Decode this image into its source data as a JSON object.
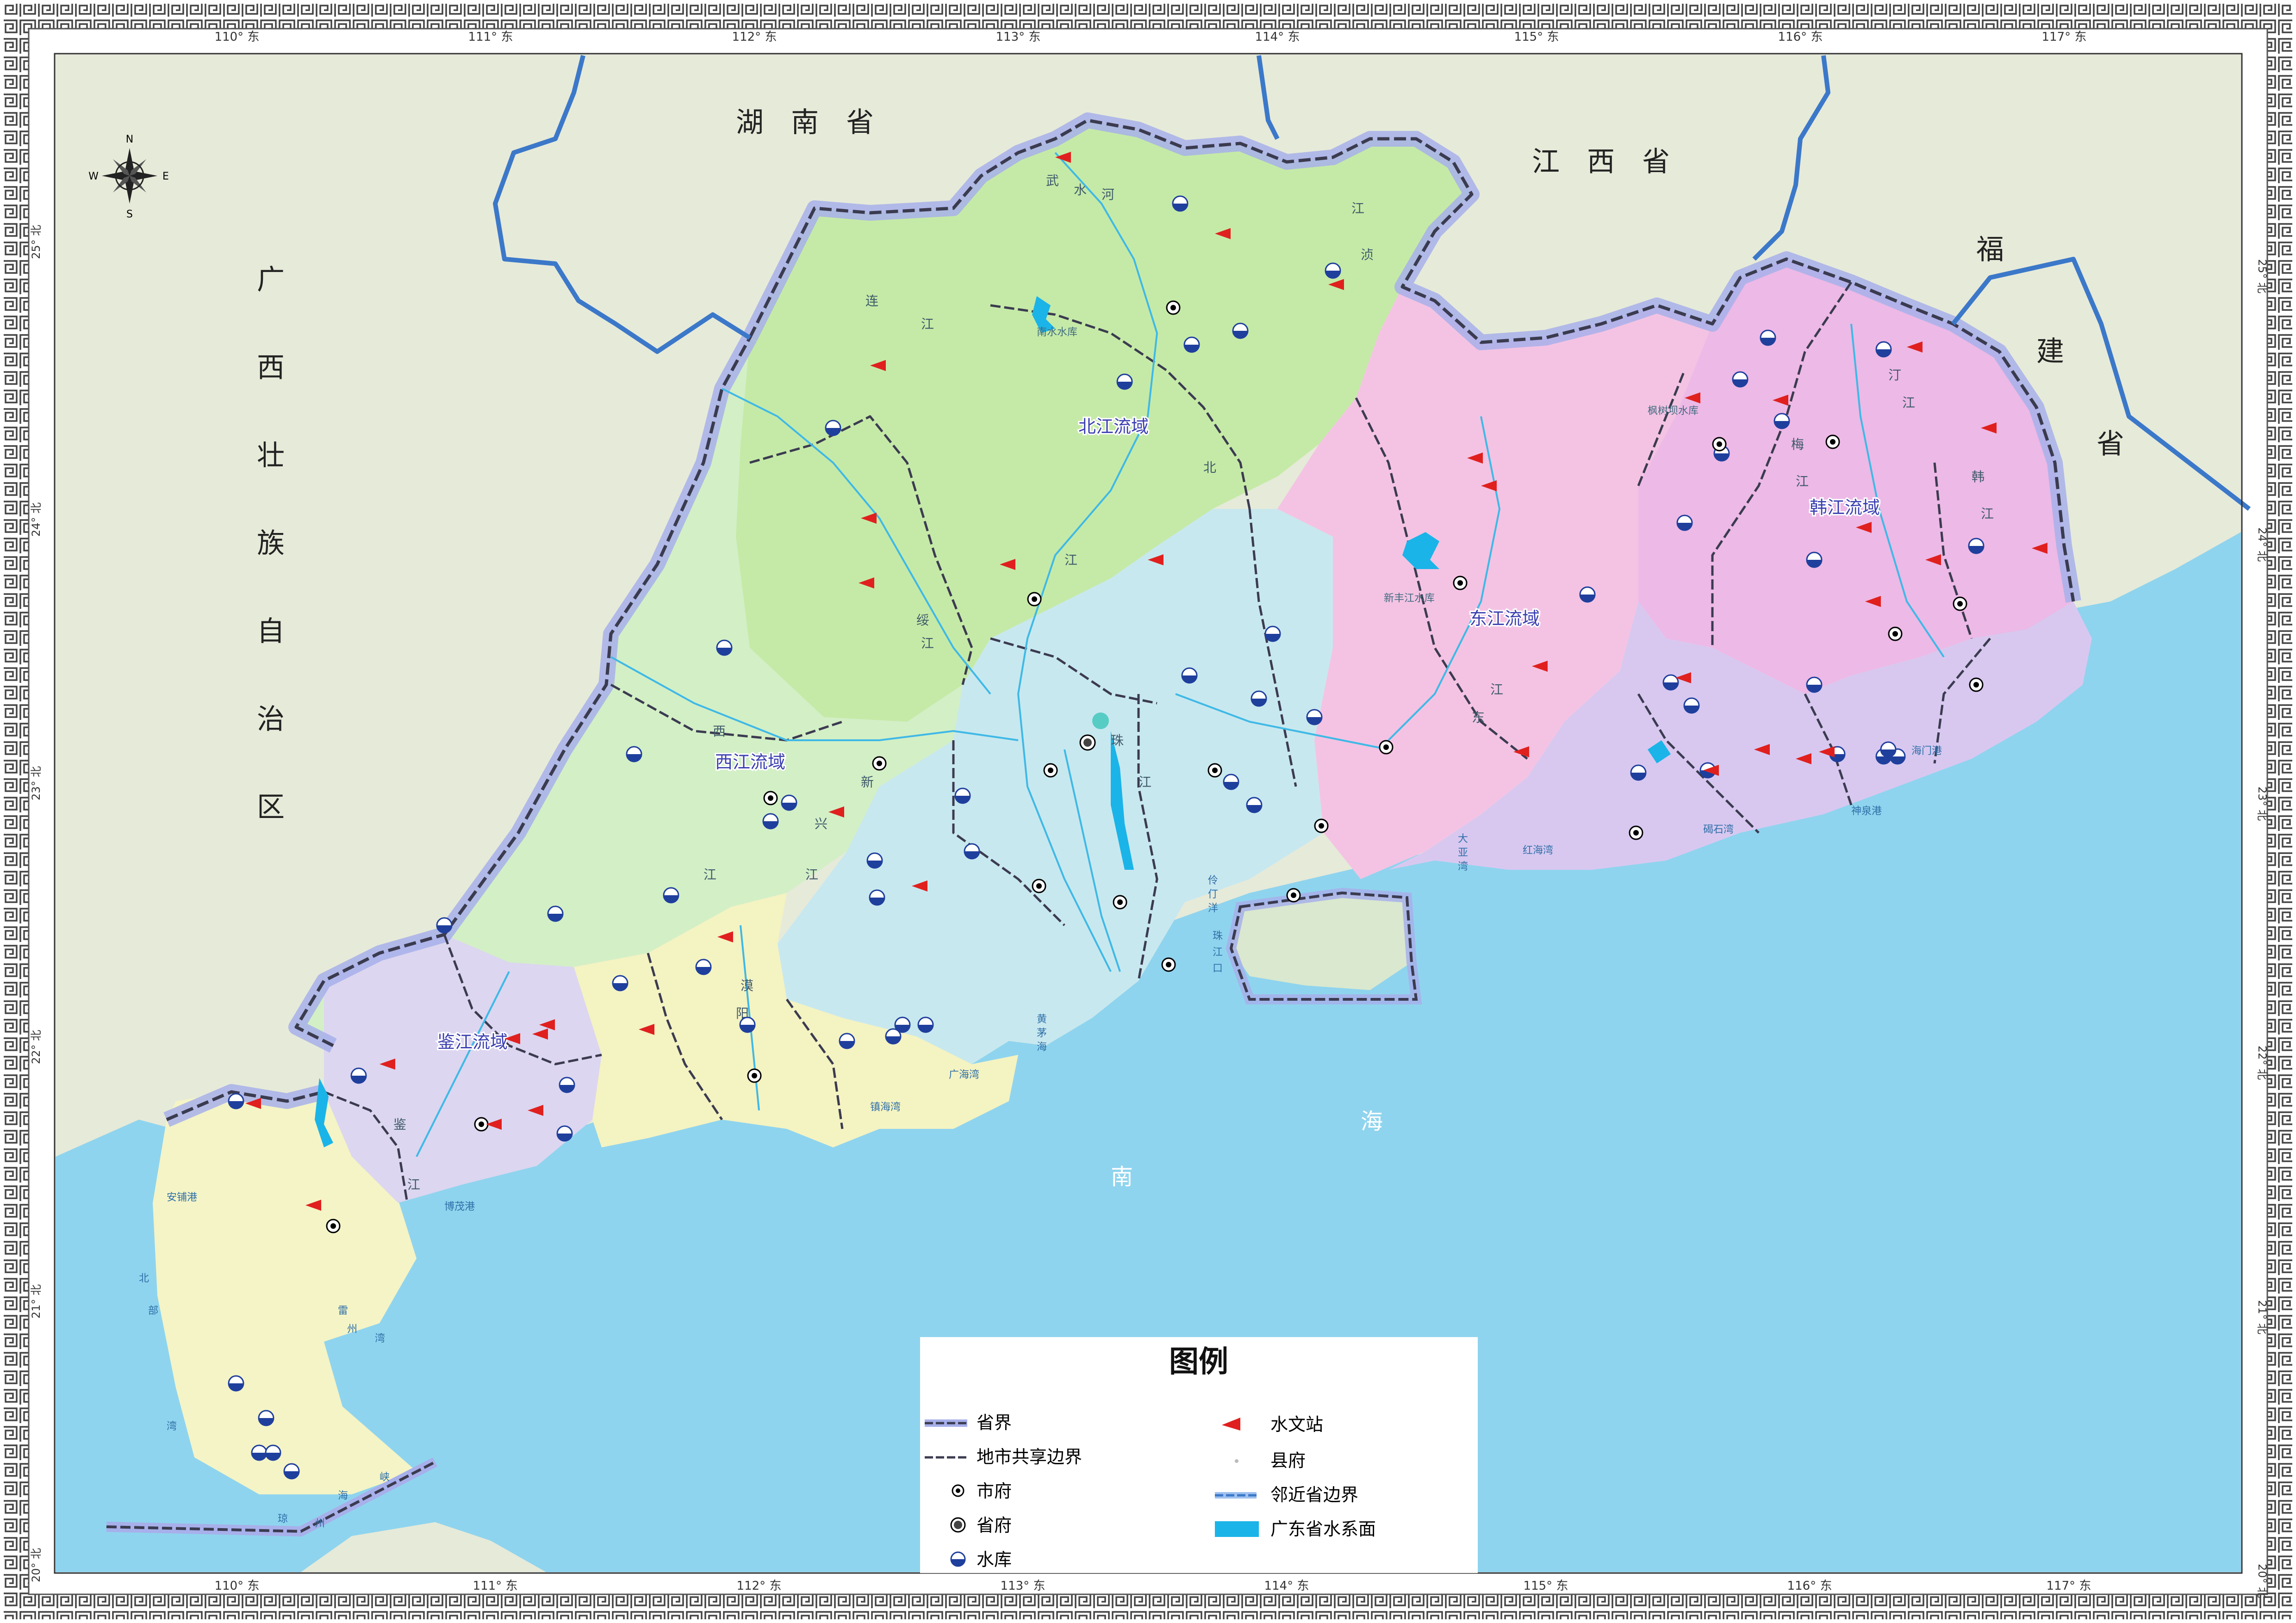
{
  "map": {
    "neighbors": {
      "hunan": "湖 南 省",
      "jiangxi": "江 西 省",
      "fujian": [
        "福",
        "建",
        "省"
      ],
      "guangxi": [
        "广",
        "西",
        "壮",
        "族",
        "自",
        "治",
        "区"
      ]
    },
    "basins": {
      "beijiang": "北江流域",
      "xijiang": "西江流域",
      "dongjiang": "东江流域",
      "hanjiang": "韩江流域",
      "jianjiang": "鉴江流域"
    },
    "sea": {
      "nan": "南",
      "hai": "海"
    },
    "waters": {
      "lingding": [
        "伶",
        "仃",
        "洋"
      ],
      "zhujiangkou": [
        "珠",
        "江",
        "口"
      ],
      "beibu": [
        "北",
        "部",
        "湾"
      ],
      "leizhou": [
        "雷",
        "州",
        "湾"
      ],
      "qiongzhou": [
        "琼",
        "州",
        "海",
        "峡"
      ],
      "huangmao": [
        "黄",
        "茅",
        "海"
      ],
      "guanghai": "广海湾",
      "zhenhai": "镇海湾",
      "bomao": "博茂港",
      "honghai": "红海湾",
      "jieshi": "碣石湾",
      "daya": [
        "大",
        "亚",
        "湾"
      ],
      "haimen": "海门港",
      "shenquan": "神泉港",
      "anpu": "安铺港"
    },
    "reservoirs_text": {
      "nanshui": "南水水库",
      "fenghuang": "枫树坝水库",
      "xinfeng": "新丰江水库"
    },
    "rivers": {
      "wushui": [
        "武",
        "水",
        "河"
      ],
      "zhenjiang": [
        "浈",
        "江"
      ],
      "beijiang": [
        "北",
        "江"
      ],
      "lianjiang": [
        "连",
        "江"
      ],
      "dongjiang": [
        "东",
        "江"
      ],
      "hanjiang": [
        "韩",
        "江"
      ],
      "xijiang": [
        "西",
        "江"
      ],
      "zhu": "珠",
      "jiang": "江",
      "suijiang": [
        "绥",
        "江"
      ],
      "ninxi": [
        "新",
        "兴",
        "江"
      ],
      "moyang": [
        "漠",
        "阳",
        "江"
      ],
      "jianjiang": [
        "鉴",
        "江"
      ],
      "meijiang": [
        "梅",
        "江"
      ],
      "tingjiang": [
        "汀",
        "江"
      ]
    },
    "lon_ticks": [
      "110° 东",
      "111° 东",
      "112° 东",
      "113° 东",
      "114° 东",
      "115° 东",
      "116° 东",
      "117° 东"
    ],
    "lat_ticks": [
      "25° 北",
      "24° 北",
      "23° 北",
      "22° 北",
      "21° 北",
      "20° 北"
    ],
    "compass": {
      "n": "N",
      "s": "S",
      "e": "E",
      "w": "W"
    }
  },
  "legend": {
    "title": "图例",
    "items": {
      "prov_border": "省界",
      "city_border": "地市共享边界",
      "city_gov": "市府",
      "prov_gov": "省府",
      "reservoir": "水库",
      "hydro_station": "水文站",
      "county_gov": "县府",
      "neighbor_border": "邻近省边界",
      "water_surface": "广东省水系面"
    }
  },
  "colors": {
    "sea": "#8fd4ee",
    "land_outside": "#e6ead9",
    "beijiang": "#c5eaa7",
    "xijiang": "#d3efc6",
    "pearl": "#c8e8ef",
    "dongjiang": "#f4c3e3",
    "hanjiang": "#edb9e6",
    "east_coast": "#d8c8f0",
    "jianjiang": "#dcd6f0",
    "moyang": "#f4f3c2",
    "leizhou": "#f4f4c6",
    "border_glow": "#a7b0ea",
    "border_dark": "#3b3b50",
    "neighbor_border": "#3b78c9",
    "hydro_station": "#e0201e",
    "reservoir_fill": "#1f3f9d",
    "water_surface": "#1ab4e8"
  }
}
